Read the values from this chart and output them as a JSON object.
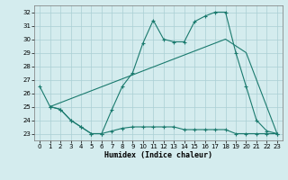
{
  "xlabel": "Humidex (Indice chaleur)",
  "bg_color": "#d4ecee",
  "line_color": "#1a7a6e",
  "grid_color": "#aacfd4",
  "xlim": [
    -0.5,
    23.5
  ],
  "ylim": [
    22.5,
    32.5
  ],
  "xticks": [
    0,
    1,
    2,
    3,
    4,
    5,
    6,
    7,
    8,
    9,
    10,
    11,
    12,
    13,
    14,
    15,
    16,
    17,
    18,
    19,
    20,
    21,
    22,
    23
  ],
  "yticks": [
    23,
    24,
    25,
    26,
    27,
    28,
    29,
    30,
    31,
    32
  ],
  "line1_x": [
    0,
    1,
    2,
    3,
    4,
    5,
    6,
    7,
    8,
    9,
    10,
    11,
    12,
    13,
    14,
    15,
    16,
    17,
    18,
    19,
    20,
    21,
    22,
    23
  ],
  "line1_y": [
    26.5,
    25.0,
    24.8,
    24.0,
    23.5,
    23.0,
    23.0,
    24.8,
    26.5,
    27.5,
    29.7,
    31.4,
    30.0,
    29.8,
    29.8,
    31.3,
    31.7,
    32.0,
    32.0,
    29.0,
    26.5,
    24.0,
    23.2,
    23.0
  ],
  "line2_x": [
    1,
    2,
    3,
    4,
    5,
    6,
    7,
    8,
    9,
    10,
    11,
    12,
    13,
    14,
    15,
    16,
    17,
    18,
    19,
    20,
    21,
    22,
    23
  ],
  "line2_y": [
    25.0,
    24.8,
    24.0,
    23.5,
    23.0,
    23.0,
    23.2,
    23.4,
    23.5,
    23.5,
    23.5,
    23.5,
    23.5,
    23.3,
    23.3,
    23.3,
    23.3,
    23.3,
    23.0,
    23.0,
    23.0,
    23.0,
    23.0
  ],
  "line3_x": [
    1,
    18,
    20,
    23
  ],
  "line3_y": [
    25.0,
    30.0,
    29.0,
    23.0
  ]
}
